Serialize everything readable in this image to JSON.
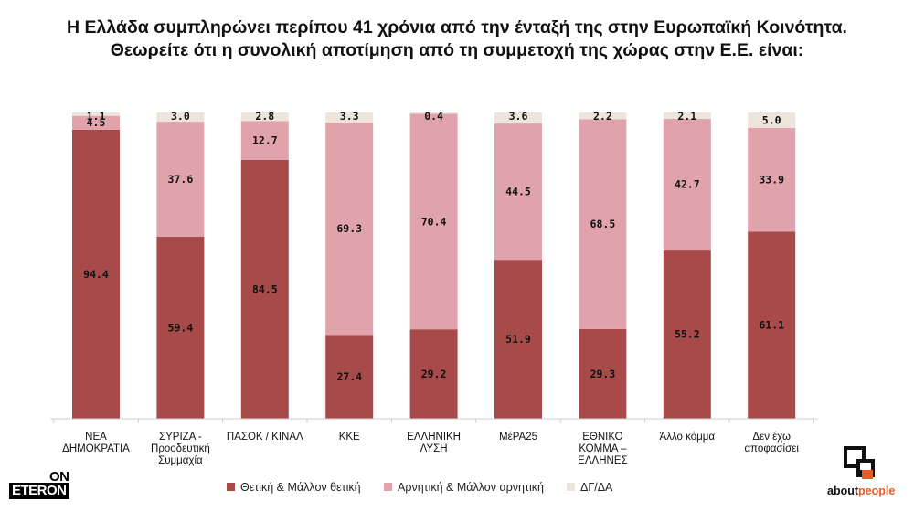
{
  "title": {
    "line1": "Η Ελλάδα συμπληρώνει περίπου 41 χρόνια από την ένταξή της στην Ευρωπαϊκή Κοινότητα.",
    "line2": "Θεωρείτε ότι η συνολική αποτίμηση από τη συμμετοχή της χώρας στην Ε.Ε. είναι:"
  },
  "chart_data": {
    "type": "bar",
    "stacked": true,
    "categories": [
      [
        "ΝΕΑ",
        "ΔΗΜΟΚΡΑΤΙΑ"
      ],
      [
        "ΣΥΡΙΖΑ -",
        "Προοδευτική",
        "Συμμαχία"
      ],
      [
        "ΠΑΣΟΚ / ΚΙΝΑΛ"
      ],
      [
        "ΚΚΕ"
      ],
      [
        "ΕΛΛΗΝΙΚΗ",
        "ΛΥΣΗ"
      ],
      [
        "ΜέΡΑ25"
      ],
      [
        "ΕΘΝΙΚΟ",
        "ΚΟΜΜΑ –",
        "ΕΛΛΗΝΕΣ"
      ],
      [
        "Άλλο κόμμα"
      ],
      [
        "Δεν έχω",
        "αποφασίσει"
      ]
    ],
    "series": [
      {
        "name": "Θετική & Μάλλον θετική",
        "color": "#a84a4a",
        "values": [
          94.4,
          59.4,
          84.5,
          27.4,
          29.2,
          51.9,
          29.3,
          55.2,
          61.1
        ]
      },
      {
        "name": "Αρνητική & Μάλλον αρνητική",
        "color": "#e0a3ab",
        "values": [
          4.5,
          37.6,
          12.7,
          69.3,
          70.4,
          44.5,
          68.5,
          42.7,
          33.9
        ]
      },
      {
        "name": "ΔΓ/ΔΑ",
        "color": "#ede4dc",
        "values": [
          1.1,
          3.0,
          2.8,
          3.3,
          0.4,
          3.6,
          2.2,
          2.1,
          5.0
        ]
      }
    ],
    "ylim": [
      0,
      100
    ],
    "legend_position": "bottom"
  },
  "logos": {
    "left": {
      "line1": "ON",
      "line2": "ETERON"
    },
    "right": {
      "part1": "about",
      "part2": "people"
    }
  }
}
